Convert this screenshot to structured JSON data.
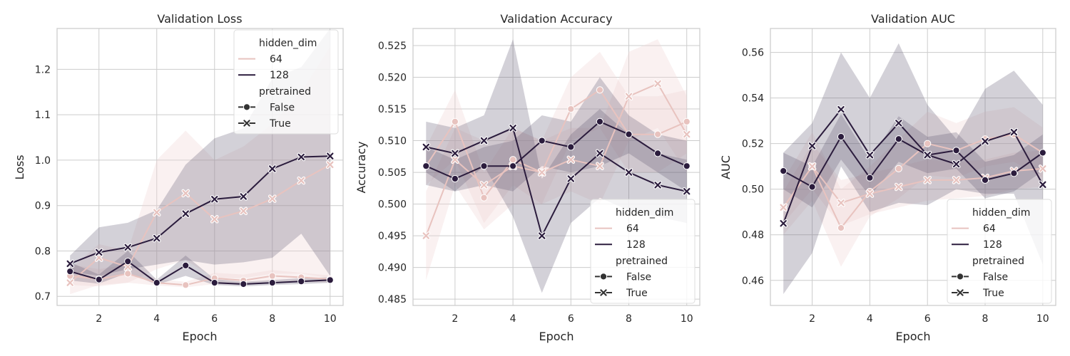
{
  "colors": {
    "background": "#ffffff",
    "grid": "#cccccc",
    "spine": "#cccccc",
    "dim_64": "#e8c3bf",
    "dim_128": "#2b1c3d",
    "band_64": "#efd6d3",
    "band_128": "#5c5470"
  },
  "legend": {
    "hue_title": "hidden_dim",
    "hue_entries": [
      "64",
      "128"
    ],
    "style_title": "pretrained",
    "style_entries": [
      "False",
      "True"
    ]
  },
  "chart_data": [
    {
      "type": "line",
      "title": "Validation Loss",
      "xlabel": "Epoch",
      "ylabel": "Loss",
      "x": [
        1,
        2,
        3,
        4,
        5,
        6,
        7,
        8,
        9,
        10
      ],
      "xlim": [
        0.55,
        10.45
      ],
      "ylim": [
        0.68,
        1.29
      ],
      "xticks": [
        2,
        4,
        6,
        8,
        10
      ],
      "yticks": [
        0.7,
        0.8,
        0.9,
        1.0,
        1.1,
        1.2
      ],
      "ytick_labels": [
        "0.7",
        "0.8",
        "0.9",
        "1.0",
        "1.1",
        "1.2"
      ],
      "grid": true,
      "legend_position": "top-right",
      "series": [
        {
          "hidden_dim": "64",
          "pretrained": "False",
          "values": [
            0.745,
            0.738,
            0.75,
            0.73,
            0.725,
            0.74,
            0.735,
            0.745,
            0.742,
            0.738
          ],
          "lower": [
            0.725,
            0.722,
            0.73,
            0.724,
            0.72,
            0.727,
            0.725,
            0.733,
            0.732,
            0.73
          ],
          "upper": [
            0.77,
            0.76,
            0.77,
            0.738,
            0.732,
            0.752,
            0.748,
            0.758,
            0.752,
            0.746
          ]
        },
        {
          "hidden_dim": "64",
          "pretrained": "True",
          "values": [
            0.73,
            0.785,
            0.765,
            0.885,
            0.927,
            0.87,
            0.888,
            0.915,
            0.955,
            0.99
          ],
          "lower": [
            0.705,
            0.725,
            0.73,
            0.76,
            0.78,
            0.74,
            0.74,
            0.75,
            0.75,
            0.74
          ],
          "upper": [
            0.76,
            0.815,
            0.8,
            1.0,
            1.065,
            1.0,
            1.03,
            1.08,
            1.15,
            1.25
          ]
        },
        {
          "hidden_dim": "128",
          "pretrained": "False",
          "values": [
            0.755,
            0.737,
            0.777,
            0.73,
            0.768,
            0.73,
            0.727,
            0.73,
            0.733,
            0.736
          ],
          "lower": [
            0.735,
            0.728,
            0.752,
            0.726,
            0.745,
            0.725,
            0.722,
            0.725,
            0.727,
            0.73
          ],
          "upper": [
            0.775,
            0.748,
            0.8,
            0.737,
            0.79,
            0.738,
            0.732,
            0.736,
            0.74,
            0.742
          ]
        },
        {
          "hidden_dim": "128",
          "pretrained": "True",
          "values": [
            0.772,
            0.797,
            0.808,
            0.828,
            0.882,
            0.914,
            0.92,
            0.981,
            1.007,
            1.009
          ],
          "lower": [
            0.755,
            0.745,
            0.76,
            0.77,
            0.78,
            0.77,
            0.775,
            0.785,
            0.838,
            0.745
          ],
          "upper": [
            0.79,
            0.852,
            0.862,
            0.89,
            0.99,
            1.048,
            1.07,
            1.18,
            1.205,
            1.29
          ]
        }
      ]
    },
    {
      "type": "line",
      "title": "Validation Accuracy",
      "xlabel": "Epoch",
      "ylabel": "Accuracy",
      "x": [
        1,
        2,
        3,
        4,
        5,
        6,
        7,
        8,
        9,
        10
      ],
      "xlim": [
        0.55,
        10.45
      ],
      "ylim": [
        0.484,
        0.5277
      ],
      "xticks": [
        2,
        4,
        6,
        8,
        10
      ],
      "yticks": [
        0.485,
        0.49,
        0.495,
        0.5,
        0.505,
        0.51,
        0.515,
        0.52,
        0.525
      ],
      "ytick_labels": [
        "0.485",
        "0.490",
        "0.495",
        "0.500",
        "0.505",
        "0.510",
        "0.515",
        "0.520",
        "0.525"
      ],
      "grid": true,
      "legend_position": "bottom-right",
      "series": [
        {
          "hidden_dim": "64",
          "pretrained": "False",
          "values": [
            0.506,
            0.513,
            0.501,
            0.507,
            0.505,
            0.515,
            0.518,
            0.511,
            0.511,
            0.513
          ],
          "lower": [
            0.503,
            0.507,
            0.497,
            0.503,
            0.5,
            0.51,
            0.512,
            0.505,
            0.505,
            0.508
          ],
          "upper": [
            0.509,
            0.518,
            0.505,
            0.512,
            0.51,
            0.52,
            0.524,
            0.517,
            0.517,
            0.518
          ]
        },
        {
          "hidden_dim": "64",
          "pretrained": "True",
          "values": [
            0.495,
            0.507,
            0.503,
            0.506,
            0.505,
            0.507,
            0.506,
            0.517,
            0.519,
            0.511
          ],
          "lower": [
            0.488,
            0.503,
            0.496,
            0.5,
            0.5,
            0.502,
            0.5,
            0.51,
            0.512,
            0.505
          ],
          "upper": [
            0.502,
            0.512,
            0.51,
            0.512,
            0.51,
            0.512,
            0.512,
            0.524,
            0.526,
            0.517
          ]
        },
        {
          "hidden_dim": "128",
          "pretrained": "False",
          "values": [
            0.506,
            0.504,
            0.506,
            0.506,
            0.51,
            0.509,
            0.513,
            0.511,
            0.508,
            0.506
          ],
          "lower": [
            0.503,
            0.502,
            0.503,
            0.502,
            0.506,
            0.505,
            0.506,
            0.508,
            0.505,
            0.502
          ],
          "upper": [
            0.509,
            0.507,
            0.509,
            0.51,
            0.514,
            0.513,
            0.52,
            0.514,
            0.511,
            0.51
          ]
        },
        {
          "hidden_dim": "128",
          "pretrained": "True",
          "values": [
            0.509,
            0.508,
            0.51,
            0.512,
            0.495,
            0.504,
            0.508,
            0.505,
            0.503,
            0.502
          ],
          "lower": [
            0.505,
            0.502,
            0.506,
            0.498,
            0.486,
            0.497,
            0.501,
            0.499,
            0.498,
            0.497
          ],
          "upper": [
            0.513,
            0.512,
            0.514,
            0.526,
            0.504,
            0.511,
            0.515,
            0.511,
            0.508,
            0.507
          ]
        }
      ]
    },
    {
      "type": "line",
      "title": "Validation AUC",
      "xlabel": "Epoch",
      "ylabel": "AUC",
      "x": [
        1,
        2,
        3,
        4,
        5,
        6,
        7,
        8,
        9,
        10
      ],
      "xlim": [
        0.55,
        10.45
      ],
      "ylim": [
        0.449,
        0.5705
      ],
      "xticks": [
        2,
        4,
        6,
        8,
        10
      ],
      "yticks": [
        0.46,
        0.48,
        0.5,
        0.52,
        0.54,
        0.56
      ],
      "ytick_labels": [
        "0.46",
        "0.48",
        "0.50",
        "0.52",
        "0.54",
        "0.56"
      ],
      "grid": true,
      "legend_position": "bottom-right",
      "series": [
        {
          "hidden_dim": "64",
          "pretrained": "False",
          "values": [
            0.492,
            0.51,
            0.483,
            0.499,
            0.509,
            0.52,
            0.517,
            0.522,
            0.524,
            0.516
          ],
          "lower": [
            0.48,
            0.495,
            0.466,
            0.488,
            0.496,
            0.506,
            0.505,
            0.51,
            0.512,
            0.505
          ],
          "upper": [
            0.504,
            0.525,
            0.5,
            0.51,
            0.522,
            0.534,
            0.529,
            0.534,
            0.536,
            0.527
          ]
        },
        {
          "hidden_dim": "64",
          "pretrained": "True",
          "values": [
            0.492,
            0.51,
            0.494,
            0.498,
            0.501,
            0.504,
            0.504,
            0.505,
            0.508,
            0.509
          ],
          "lower": [
            0.485,
            0.5,
            0.484,
            0.489,
            0.492,
            0.495,
            0.496,
            0.497,
            0.5,
            0.501
          ],
          "upper": [
            0.499,
            0.52,
            0.504,
            0.507,
            0.51,
            0.513,
            0.512,
            0.513,
            0.516,
            0.517
          ]
        },
        {
          "hidden_dim": "128",
          "pretrained": "False",
          "values": [
            0.508,
            0.501,
            0.523,
            0.505,
            0.522,
            0.515,
            0.517,
            0.504,
            0.507,
            0.516
          ],
          "lower": [
            0.5,
            0.492,
            0.513,
            0.497,
            0.512,
            0.507,
            0.509,
            0.496,
            0.499,
            0.508
          ],
          "upper": [
            0.516,
            0.51,
            0.533,
            0.513,
            0.532,
            0.523,
            0.525,
            0.512,
            0.515,
            0.524
          ]
        },
        {
          "hidden_dim": "128",
          "pretrained": "True",
          "values": [
            0.485,
            0.519,
            0.535,
            0.515,
            0.529,
            0.515,
            0.511,
            0.521,
            0.525,
            0.502
          ],
          "lower": [
            0.454,
            0.472,
            0.51,
            0.49,
            0.494,
            0.493,
            0.5,
            0.498,
            0.498,
            0.467
          ],
          "upper": [
            0.516,
            0.529,
            0.56,
            0.54,
            0.564,
            0.537,
            0.522,
            0.544,
            0.552,
            0.537
          ]
        }
      ]
    }
  ]
}
